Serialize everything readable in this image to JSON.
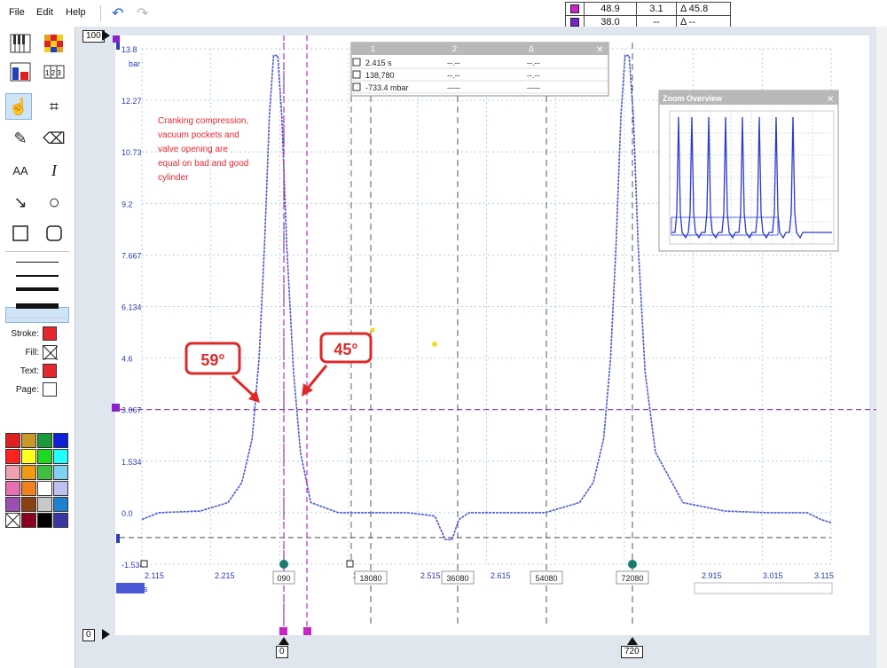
{
  "menu": {
    "file": "File",
    "edit": "Edit",
    "help": "Help"
  },
  "measure_table": {
    "row1": {
      "color": "#cc22cc",
      "v1": "48.9",
      "v2": "3.1",
      "delta": "Δ 45.8"
    },
    "row2": {
      "color": "#7722cc",
      "v1": "38.0",
      "v2": "--",
      "delta": "Δ  --"
    }
  },
  "toolbar": {
    "tools": [
      "piano-icon",
      "heatmap-icon",
      "bar-chart-icon",
      "table-icon",
      "hand-pointer-icon",
      "crop-icon",
      "pen-icon",
      "eraser-icon",
      "font-size-icon",
      "italic-text-icon",
      "arrow-icon",
      "circle-icon",
      "rectangle-icon",
      "rounded-rectangle-icon"
    ],
    "stroke_label": "Stroke:",
    "fill_label": "Fill:",
    "text_label": "Text:",
    "page_label": "Page:",
    "stroke_color": "#e8262e",
    "text_color": "#e8262e",
    "page_color": "#ffffff",
    "palette": [
      "#e02020",
      "#c89a2a",
      "#1c9a3a",
      "#1020d8",
      "#ff2020",
      "#ffff20",
      "#20d820",
      "#20ffff",
      "#f0a0b0",
      "#f09a10",
      "#40c040",
      "#80d0f0",
      "#e870b0",
      "#f08020",
      "#ffffff",
      "#c0c0f0",
      "#9a50b0",
      "#8a4010",
      "#c8c8c8",
      "#2080d0",
      "none",
      "#8a0020",
      "#000000",
      "#3838a0"
    ]
  },
  "handles": {
    "top": "100",
    "bottom": "0",
    "left_cursor": "0",
    "right_cursor": "720"
  },
  "plot": {
    "y_unit": "bar",
    "y_ticks": [
      "13.8",
      "12.27",
      "10.73",
      "9.2",
      "7.667",
      "6.134",
      "4.6",
      "3.067",
      "1.534",
      "0.0",
      "-1.534"
    ],
    "x_ticks": [
      "2.115",
      "2.215",
      "2.415",
      "2.515",
      "2.615",
      "2.915",
      "3.015",
      "3.115"
    ],
    "x_unit": "s",
    "degree_markers": [
      "090",
      "18080",
      "36080",
      "54080",
      "72080"
    ],
    "annotation": "Cranking compression, vacuum pockets and valve opening are equal on bad and good cylinder",
    "callout_left": "59°",
    "callout_right": "45°",
    "callout_color": "#e02828",
    "trace_color": "#4a58d8"
  },
  "legend_box": {
    "col1": "1",
    "col2": "2",
    "col3": "Δ",
    "rows": [
      {
        "v1": "2.415 s",
        "v2": "--.--",
        "v3": "--.--"
      },
      {
        "v1": "138,780",
        "v2": "--.--",
        "v3": "--.--"
      },
      {
        "v1": "-733.4 mbar",
        "v2": "-----",
        "v3": "-----"
      }
    ]
  },
  "zoom_overview": {
    "title": "Zoom Overview"
  },
  "chart_data": {
    "type": "line",
    "xlabel": "",
    "ylabel": "bar",
    "xlim": [
      2.115,
      3.115
    ],
    "ylim": [
      -1.534,
      13.8
    ],
    "x": [
      2.115,
      2.14,
      2.2,
      2.24,
      2.26,
      2.275,
      2.285,
      2.293,
      2.3,
      2.306,
      2.312,
      2.318,
      2.325,
      2.335,
      2.345,
      2.36,
      2.4,
      2.45,
      2.5,
      2.54,
      2.555,
      2.565,
      2.575,
      2.59,
      2.63,
      2.7,
      2.75,
      2.77,
      2.785,
      2.795,
      2.803,
      2.81,
      2.816,
      2.822,
      2.828,
      2.835,
      2.845,
      2.86,
      2.9,
      2.96,
      3.02,
      3.08,
      3.1,
      3.115
    ],
    "series": [
      {
        "values": [
          -0.2,
          0.0,
          0.05,
          0.3,
          0.9,
          2.2,
          4.6,
          8.0,
          11.8,
          13.6,
          13.6,
          11.8,
          8.0,
          4.2,
          1.8,
          0.3,
          0.0,
          0.0,
          0.0,
          -0.1,
          -0.8,
          -0.8,
          -0.2,
          0.0,
          0.0,
          0.0,
          0.3,
          0.9,
          2.2,
          4.6,
          8.0,
          11.8,
          13.6,
          13.6,
          11.8,
          8.0,
          4.2,
          1.8,
          0.3,
          0.05,
          0.0,
          0.0,
          -0.2,
          -0.3
        ]
      }
    ],
    "horizontal_cursor": 3.067,
    "grid": true
  }
}
